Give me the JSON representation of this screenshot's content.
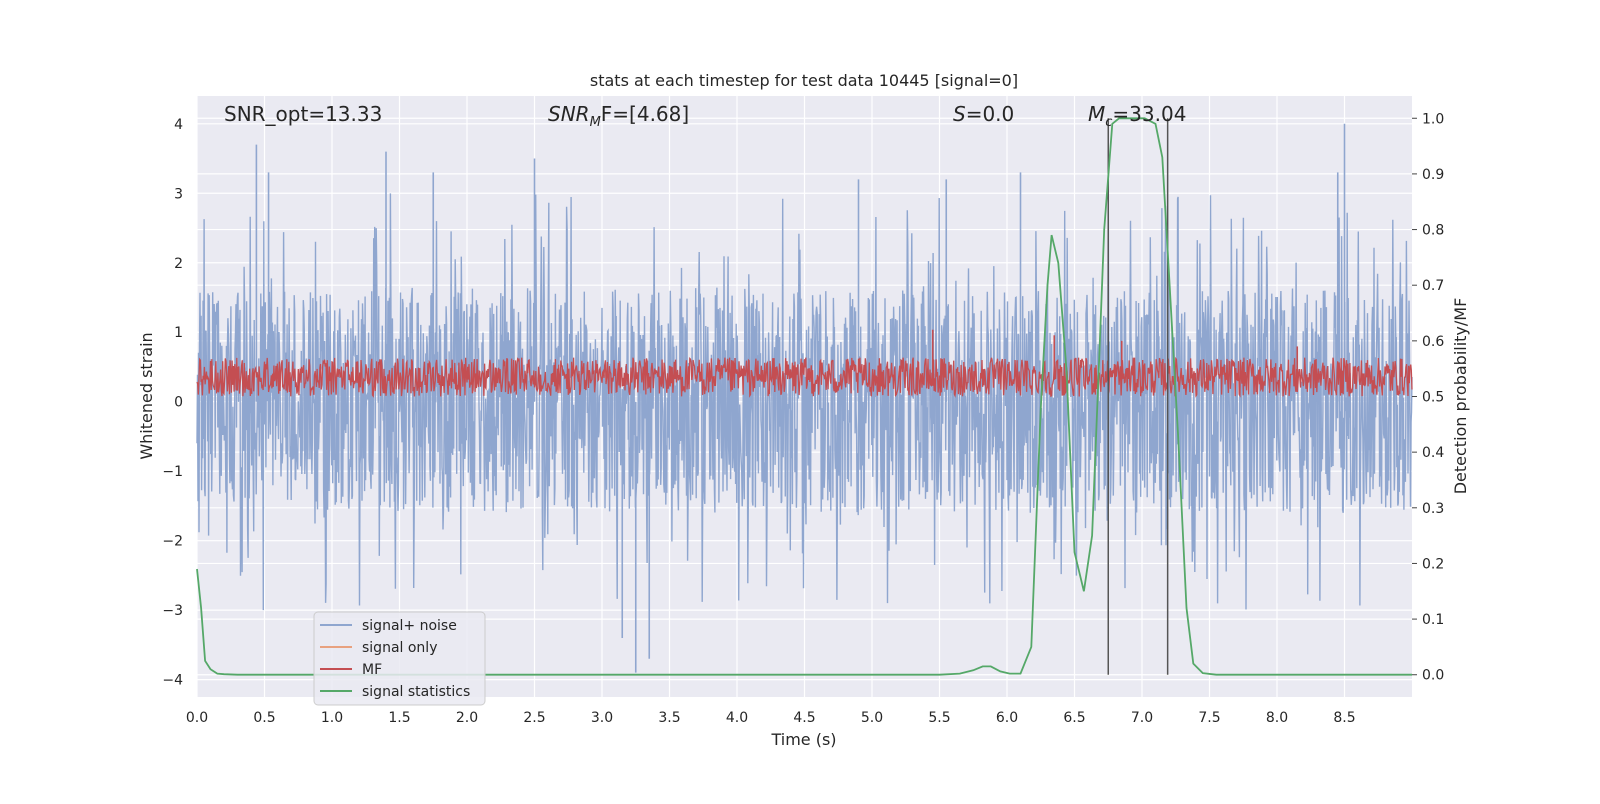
{
  "chart_data": {
    "type": "line",
    "title": "stats at each timestep for test data 10445 [signal=0]",
    "xlabel": "Time (s)",
    "ylabel_left": "Whitened strain",
    "ylabel_right": "Detection probability/MF",
    "xlim": [
      0.0,
      9.0
    ],
    "ylim_left": [
      -4.25,
      4.4
    ],
    "ylim_right": [
      -0.04,
      1.04
    ],
    "xticks": [
      "0.0",
      "0.5",
      "1.0",
      "1.5",
      "2.0",
      "2.5",
      "3.0",
      "3.5",
      "4.0",
      "4.5",
      "5.0",
      "5.5",
      "6.0",
      "6.5",
      "7.0",
      "7.5",
      "8.0",
      "8.5"
    ],
    "xtick_values": [
      0.0,
      0.5,
      1.0,
      1.5,
      2.0,
      2.5,
      3.0,
      3.5,
      4.0,
      4.5,
      5.0,
      5.5,
      6.0,
      6.5,
      7.0,
      7.5,
      8.0,
      8.5
    ],
    "yticks_left": [
      "4",
      "3",
      "2",
      "1",
      "0",
      "−1",
      "−2",
      "−3",
      "−4"
    ],
    "ytick_values_left": [
      4,
      3,
      2,
      1,
      0,
      -1,
      -2,
      -3,
      -4
    ],
    "yticks_right": [
      "1.0",
      "0.9",
      "0.8",
      "0.7",
      "0.6",
      "0.5",
      "0.4",
      "0.3",
      "0.2",
      "0.1",
      "0.0"
    ],
    "ytick_values_right": [
      1.0,
      0.9,
      0.8,
      0.7,
      0.6,
      0.5,
      0.4,
      0.3,
      0.2,
      0.1,
      0.0
    ],
    "grid": true,
    "legend_placement": "lower-left",
    "annotations": {
      "snr_opt": "SNR_opt=13.33",
      "snr_mf_main": "SNR",
      "snr_mf_sub": "M",
      "snr_mf_rest": "F=[4.68]",
      "s_main": "S",
      "s_rest": "=0.0",
      "mc_main": "M",
      "mc_sub": "c",
      "mc_rest": "=33.04"
    },
    "vertical_markers_x": [
      6.75,
      7.19
    ],
    "series": [
      {
        "name": "signal+ noise",
        "axis": "left",
        "color": "#8fa6cf",
        "kind": "noise",
        "typical_range": [
          -1.6,
          1.6
        ],
        "extreme_range": [
          -3.9,
          4.0
        ],
        "extremes": [
          [
            0.44,
            3.7
          ],
          [
            0.53,
            3.3
          ],
          [
            1.4,
            3.6
          ],
          [
            2.5,
            3.5
          ],
          [
            3.25,
            -3.9
          ],
          [
            3.15,
            -3.4
          ],
          [
            3.35,
            -3.7
          ],
          [
            5.55,
            3.2
          ],
          [
            6.1,
            3.3
          ],
          [
            8.5,
            4.0
          ],
          [
            8.45,
            3.3
          ],
          [
            4.9,
            3.2
          ],
          [
            1.75,
            3.3
          ]
        ]
      },
      {
        "name": "signal only",
        "axis": "left",
        "color": "#e8a17f",
        "x": [],
        "y": []
      },
      {
        "name": "MF",
        "axis": "right",
        "color": "#c44e52",
        "kind": "noise",
        "typical_range": [
          0.5,
          0.57
        ],
        "extremes": [
          [
            5.45,
            0.62
          ],
          [
            6.35,
            0.61
          ],
          [
            6.85,
            0.6
          ],
          [
            8.15,
            0.59
          ]
        ]
      },
      {
        "name": "signal statistics",
        "axis": "right",
        "color": "#55a868",
        "x": [
          0.0,
          0.03,
          0.06,
          0.1,
          0.15,
          0.2,
          0.3,
          0.5,
          1.0,
          2.0,
          3.0,
          4.0,
          5.0,
          5.5,
          5.65,
          5.75,
          5.82,
          5.88,
          5.95,
          6.02,
          6.1,
          6.18,
          6.25,
          6.3,
          6.33,
          6.38,
          6.44,
          6.5,
          6.57,
          6.63,
          6.68,
          6.72,
          6.78,
          6.83,
          6.88,
          6.95,
          7.02,
          7.1,
          7.15,
          7.2,
          7.27,
          7.33,
          7.38,
          7.45,
          7.55,
          8.0,
          8.5,
          9.0
        ],
        "y": [
          0.19,
          0.12,
          0.025,
          0.01,
          0.002,
          0.001,
          0.0,
          0.0,
          0.0,
          0.0,
          0.0,
          0.0,
          0.0,
          0.0,
          0.002,
          0.008,
          0.015,
          0.015,
          0.006,
          0.002,
          0.002,
          0.05,
          0.48,
          0.7,
          0.79,
          0.74,
          0.55,
          0.22,
          0.15,
          0.25,
          0.55,
          0.8,
          0.99,
          1.0,
          1.0,
          1.0,
          1.0,
          0.99,
          0.93,
          0.72,
          0.42,
          0.12,
          0.02,
          0.003,
          0.0,
          0.0,
          0.0,
          0.0
        ]
      }
    ]
  }
}
